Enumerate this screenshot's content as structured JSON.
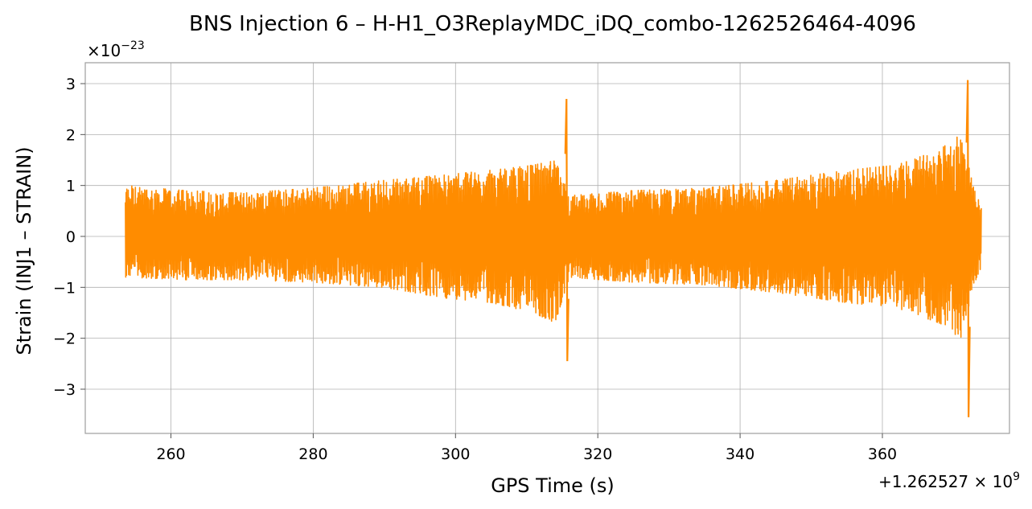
{
  "chart_data": {
    "type": "line",
    "title": "BNS Injection 6 – H-H1_O3ReplayMDC_iDQ_combo-1262526464-4096",
    "xlabel": "GPS Time (s)",
    "ylabel": "Strain (INJ1 – STRAIN)",
    "x_offset_text": {
      "prefix": "+1.262527 × 10",
      "exponent": "9"
    },
    "y_offset_text": {
      "prefix": "×10",
      "exponent": "−23"
    },
    "xlim": [
      248,
      1360
    ],
    "ylim": [
      -3.9,
      3.4
    ],
    "x_ticks": [
      {
        "value": 260,
        "label": "260"
      },
      {
        "value": 280,
        "label": "280"
      },
      {
        "value": 300,
        "label": "300"
      },
      {
        "value": 320,
        "label": "320"
      },
      {
        "value": 340,
        "label": "340"
      },
      {
        "value": 360,
        "label": "360"
      }
    ],
    "y_ticks": [
      {
        "value": 3,
        "label": "3"
      },
      {
        "value": 2,
        "label": "2"
      },
      {
        "value": 1,
        "label": "1"
      },
      {
        "value": 0,
        "label": "0"
      },
      {
        "value": -1,
        "label": "−1"
      },
      {
        "value": -2,
        "label": "−2"
      },
      {
        "value": -3,
        "label": "−3"
      }
    ],
    "grid": true,
    "series": [
      {
        "color": "#ff8c00",
        "x_range": [
          253.6,
          373.9
        ],
        "envelope": [
          {
            "t": 253.6,
            "upper": 1.0,
            "lower": -0.8
          },
          {
            "t": 262,
            "upper": 0.9,
            "lower": -0.85
          },
          {
            "t": 270,
            "upper": 0.85,
            "lower": -0.85
          },
          {
            "t": 280,
            "upper": 0.95,
            "lower": -0.9
          },
          {
            "t": 290,
            "upper": 1.1,
            "lower": -1.0
          },
          {
            "t": 298,
            "upper": 1.2,
            "lower": -1.2
          },
          {
            "t": 305,
            "upper": 1.3,
            "lower": -1.3
          },
          {
            "t": 311,
            "upper": 1.4,
            "lower": -1.5
          },
          {
            "t": 314,
            "upper": 1.5,
            "lower": -1.7
          },
          {
            "t": 316,
            "upper": 0.8,
            "lower": -0.8
          },
          {
            "t": 325,
            "upper": 0.9,
            "lower": -0.9
          },
          {
            "t": 335,
            "upper": 0.95,
            "lower": -0.95
          },
          {
            "t": 345,
            "upper": 1.1,
            "lower": -1.1
          },
          {
            "t": 355,
            "upper": 1.3,
            "lower": -1.3
          },
          {
            "t": 362,
            "upper": 1.4,
            "lower": -1.4
          },
          {
            "t": 368,
            "upper": 1.7,
            "lower": -1.7
          },
          {
            "t": 371,
            "upper": 2.0,
            "lower": -2.0
          },
          {
            "t": 373,
            "upper": 0.9,
            "lower": -0.9
          },
          {
            "t": 373.9,
            "upper": 0.7,
            "lower": -0.6
          }
        ],
        "spikes": [
          {
            "t": 315.6,
            "max": 2.7,
            "min": -2.45
          },
          {
            "t": 372.0,
            "max": 3.07,
            "min": -3.55
          }
        ]
      }
    ]
  }
}
